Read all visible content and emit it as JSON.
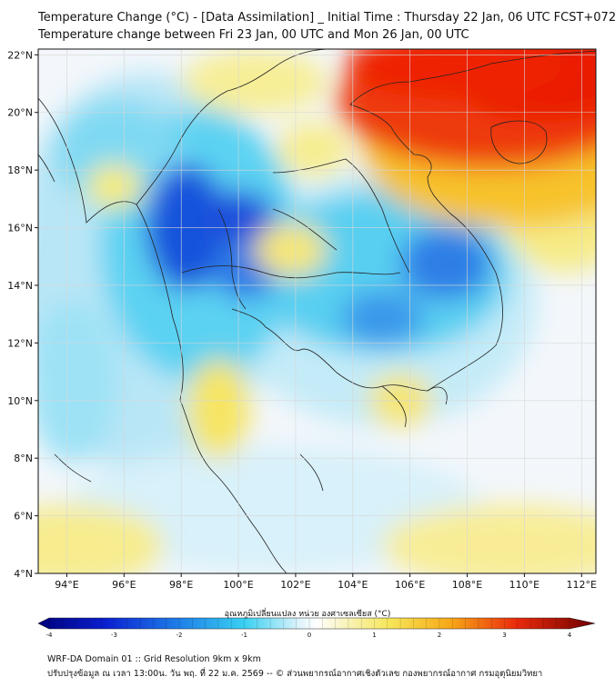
{
  "header": {
    "title_line1": "Temperature Change (°C) - [Data Assimilation] _ Initial Time : Thursday 22 Jan, 06 UTC FCST+072",
    "title_line2": "Temperature change between Fri 23 Jan, 00 UTC and Mon 26 Jan, 00 UTC"
  },
  "map": {
    "lon_ticks": [
      "94°E",
      "96°E",
      "98°E",
      "100°E",
      "102°E",
      "104°E",
      "106°E",
      "108°E",
      "110°E",
      "112°E"
    ],
    "lat_ticks": [
      "22°N",
      "20°N",
      "18°N",
      "16°N",
      "14°N",
      "12°N",
      "10°N",
      "8°N",
      "6°N",
      "4°N"
    ],
    "lon_range": [
      93,
      112.5
    ],
    "lat_range": [
      4,
      22.2
    ],
    "grid": true,
    "colors": {
      "strong_cooling": "#0a2fd6",
      "cooling": "#35c6ef",
      "neutral": "#f4f8fc",
      "slight_warming": "#f7ea6a",
      "warming": "#ee2a0e"
    }
  },
  "colorbar": {
    "label": "อุณหภูมิเปลี่ยนแปลง หน่วย องศาเซลเซียส (°C)",
    "ticks": [
      "-4",
      "-3",
      "-2",
      "-1",
      "0",
      "1",
      "2",
      "3",
      "4"
    ],
    "min": -4,
    "max": 4
  },
  "footer": {
    "line1": "WRF-DA Domain 01 :: Grid Resolution 9km x 9km",
    "line2": "ปรับปรุงข้อมูล ณ เวลา 13:00น. วัน พฤ. ที่ 22 ม.ค. 2569 -- © ส่วนพยากรณ์อากาศเชิงตัวเลข กองพยากรณ์อากาศ กรมอุตุนิยมวิทยา"
  }
}
